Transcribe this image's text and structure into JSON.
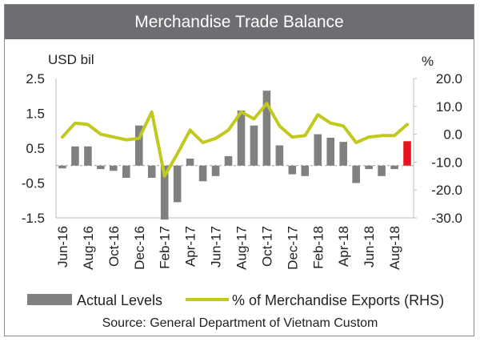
{
  "title": "Merchandise Trade Balance",
  "source": "Source: General Department of Vietnam Custom",
  "chart_data": {
    "type": "bar+line",
    "left_axis": {
      "unit": "USD bil",
      "ticks": [
        2.5,
        1.5,
        0.5,
        -0.5,
        -1.5
      ],
      "range": [
        -1.5,
        2.5
      ]
    },
    "right_axis": {
      "unit": "%",
      "ticks": [
        "20.0",
        "10.0",
        "0.0",
        "-10.0",
        "-20.0",
        "-30.0"
      ],
      "range": [
        -30,
        20
      ]
    },
    "x_labels": [
      "Jun-16",
      "Aug-16",
      "Oct-16",
      "Dec-16",
      "Feb-17",
      "Apr-17",
      "Jun-17",
      "Aug-17",
      "Oct-17",
      "Dec-17",
      "Feb-18",
      "Apr-18",
      "Jun-18",
      "Aug-18"
    ],
    "months": [
      "Jun-16",
      "Jul-16",
      "Aug-16",
      "Sep-16",
      "Oct-16",
      "Nov-16",
      "Dec-16",
      "Jan-17",
      "Feb-17",
      "Mar-17",
      "Apr-17",
      "May-17",
      "Jun-17",
      "Jul-17",
      "Aug-17",
      "Sep-17",
      "Oct-17",
      "Nov-17",
      "Dec-17",
      "Jan-18",
      "Feb-18",
      "Mar-18",
      "Apr-18",
      "May-18",
      "Jun-18",
      "Jul-18",
      "Aug-18",
      "Sep-18"
    ],
    "series": [
      {
        "name": "Actual Levels",
        "type": "bar",
        "axis": "left",
        "color": "#808080",
        "highlight_color": "#e8141b",
        "highlight_index": 27,
        "values": [
          -0.08,
          0.55,
          0.55,
          -0.1,
          -0.15,
          -0.35,
          1.15,
          -0.35,
          -1.55,
          -1.05,
          0.2,
          -0.45,
          -0.3,
          0.27,
          1.58,
          1.15,
          2.15,
          0.58,
          -0.25,
          -0.3,
          0.9,
          0.8,
          0.68,
          -0.5,
          -0.1,
          -0.3,
          -0.1,
          0.7
        ]
      },
      {
        "name": "% of Merchandise Exports (RHS)",
        "type": "line",
        "axis": "right",
        "color": "#c2c91e",
        "values": [
          -1,
          4,
          3.5,
          0,
          -1,
          -2,
          -1.5,
          8,
          -15,
          -7,
          1.5,
          -3,
          -1.5,
          1.5,
          8,
          5.5,
          11,
          3,
          -1,
          -0.5,
          7,
          4,
          3,
          -3,
          -1,
          -0.5,
          -0.5,
          3.5
        ]
      }
    ],
    "legend": {
      "position": "bottom"
    },
    "grid": false
  }
}
